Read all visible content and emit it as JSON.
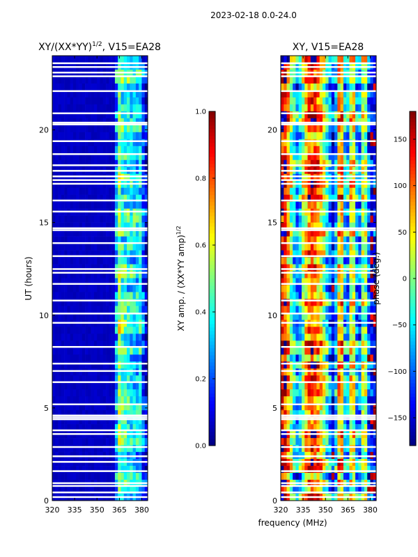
{
  "suptitle": "2023-02-18 0.0-24.0",
  "chart_data": [
    {
      "type": "heatmap",
      "title": "XY/(XX*YY)",
      "title_sup": "1/2",
      "title_suffix": ", V15=EA28",
      "xlabel": "frequency (MHz)",
      "ylabel": "UT (hours)",
      "xlim": [
        320,
        384
      ],
      "ylim": [
        0,
        24
      ],
      "xticks": [
        "320",
        "335",
        "350",
        "365",
        "380"
      ],
      "yticks": [
        "0",
        "5",
        "10",
        "15",
        "20"
      ],
      "colorbar": {
        "label": "XY amp. / (XX*YY amp)",
        "label_sup": "1/2",
        "range": [
          0,
          1
        ],
        "ticks": [
          "0.0",
          "0.2",
          "0.4",
          "0.6",
          "0.8",
          "1.0"
        ]
      },
      "column_profile_mhz": [
        320,
        362,
        364,
        366,
        368,
        370,
        372,
        374,
        376,
        378,
        380,
        382
      ],
      "column_profile_value": [
        0.05,
        0.05,
        0.55,
        0.5,
        0.35,
        0.5,
        0.3,
        0.45,
        0.25,
        0.45,
        0.3,
        0.1
      ],
      "flagged_hours": [
        0.2,
        0.45,
        0.8,
        0.95,
        1.6,
        2.1,
        2.4,
        2.9,
        3.6,
        3.8,
        4.4,
        4.5,
        4.6,
        5.2,
        6.4,
        7.0,
        7.4,
        8.3,
        9.6,
        10.1,
        10.8,
        11.7,
        12.3,
        12.5,
        13.2,
        13.9,
        14.6,
        14.7,
        15.6,
        16.2,
        17.1,
        17.3,
        17.5,
        17.8,
        18.1,
        18.7,
        19.4,
        20.3,
        20.4,
        20.9,
        22.1,
        22.9,
        23.1,
        23.4,
        23.6
      ]
    },
    {
      "type": "heatmap",
      "title": "XY, V15=EA28",
      "xlabel": "frequency (MHz)",
      "xlim": [
        320,
        384
      ],
      "ylim": [
        0,
        24
      ],
      "xticks": [
        "320",
        "335",
        "350",
        "365",
        "380"
      ],
      "yticks": [
        "0",
        "5",
        "10",
        "15",
        "20"
      ],
      "colorbar": {
        "label": "phase (deg.)",
        "range": [
          -180,
          180
        ],
        "ticks": [
          "-150",
          "-100",
          "-50",
          "0",
          "50",
          "100",
          "150"
        ]
      },
      "column_profile_mhz": [
        320,
        324,
        328,
        332,
        336,
        340,
        344,
        348,
        352,
        356,
        360,
        364,
        368,
        372,
        376,
        380
      ],
      "column_profile_value": [
        150,
        120,
        -30,
        -90,
        40,
        130,
        100,
        40,
        -60,
        -140,
        140,
        -110,
        90,
        -130,
        60,
        -150
      ],
      "flagged_hours": [
        0.2,
        0.45,
        0.8,
        0.95,
        1.6,
        2.1,
        2.4,
        2.9,
        3.6,
        3.8,
        4.4,
        4.5,
        4.6,
        5.2,
        6.4,
        7.0,
        7.4,
        8.3,
        9.6,
        10.1,
        10.8,
        11.7,
        12.3,
        12.5,
        13.2,
        13.9,
        14.6,
        14.7,
        15.6,
        16.2,
        17.1,
        17.3,
        17.5,
        17.8,
        18.1,
        18.7,
        19.4,
        20.3,
        20.4,
        20.9,
        22.1,
        22.9,
        23.1,
        23.4,
        23.6
      ]
    }
  ]
}
